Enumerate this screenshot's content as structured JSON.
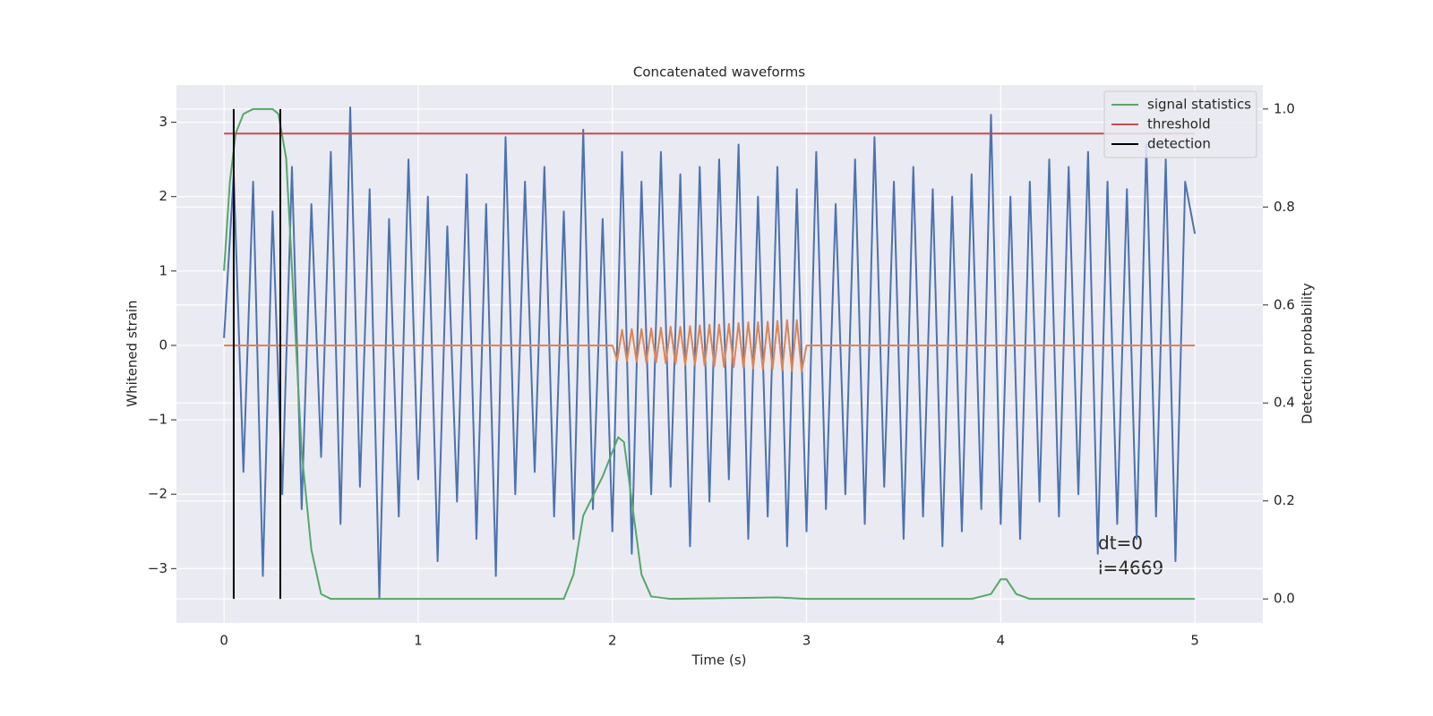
{
  "chart_data": {
    "type": "line",
    "title": "Concatenated waveforms",
    "xlabel": "Time (s)",
    "ylabel": "Whitened strain",
    "y2label": "Detection probability",
    "annotation": [
      "dt=0",
      "i=4669"
    ],
    "xlim": [
      -0.245,
      5.35
    ],
    "ylim": [
      -3.73,
      3.5
    ],
    "y2lim": [
      -0.049,
      1.049
    ],
    "xticks": [
      0,
      1,
      2,
      3,
      4,
      5
    ],
    "yticks": [
      {
        "value": -3,
        "label": "−3"
      },
      {
        "value": -2,
        "label": "−2"
      },
      {
        "value": -1,
        "label": "−1"
      },
      0,
      1,
      2,
      3
    ],
    "y2ticks": [
      {
        "value": 0,
        "label": "0.0"
      },
      {
        "value": 0.2,
        "label": "0.2"
      },
      {
        "value": 0.4,
        "label": "0.4"
      },
      {
        "value": 0.6,
        "label": "0.6"
      },
      {
        "value": 0.8,
        "label": "0.8"
      },
      {
        "value": 1,
        "label": "1.0"
      }
    ],
    "grid": true,
    "legend": "upper right",
    "series": [
      {
        "color": "#4c72b0",
        "x": [
          0,
          0.05,
          0.1,
          0.15,
          0.2,
          0.25,
          0.3,
          0.35,
          0.4,
          0.45,
          0.5,
          0.55,
          0.6,
          0.65,
          0.7,
          0.75,
          0.8,
          0.85,
          0.9,
          0.95,
          1.0,
          1.05,
          1.1,
          1.15,
          1.2,
          1.25,
          1.3,
          1.35,
          1.4,
          1.45,
          1.5,
          1.55,
          1.6,
          1.65,
          1.7,
          1.75,
          1.8,
          1.85,
          1.9,
          1.95,
          2.0,
          2.05,
          2.1,
          2.15,
          2.2,
          2.25,
          2.3,
          2.35,
          2.4,
          2.45,
          2.5,
          2.55,
          2.6,
          2.65,
          2.7,
          2.75,
          2.8,
          2.85,
          2.9,
          2.95,
          3.0,
          3.05,
          3.1,
          3.15,
          3.2,
          3.25,
          3.3,
          3.35,
          3.4,
          3.45,
          3.5,
          3.55,
          3.6,
          3.65,
          3.7,
          3.75,
          3.8,
          3.85,
          3.9,
          3.95,
          4.0,
          4.05,
          4.1,
          4.15,
          4.2,
          4.25,
          4.3,
          4.35,
          4.4,
          4.45,
          4.5,
          4.55,
          4.6,
          4.65,
          4.7,
          4.75,
          4.8,
          4.85,
          4.9,
          4.95,
          5.0
        ],
        "values": [
          0.1,
          2.3,
          -1.7,
          2.2,
          -3.1,
          1.8,
          -2.0,
          2.4,
          -2.2,
          1.9,
          -1.5,
          2.6,
          -2.4,
          3.2,
          -1.9,
          2.1,
          -3.4,
          1.7,
          -2.3,
          2.5,
          -1.8,
          2.0,
          -2.9,
          1.6,
          -2.1,
          2.3,
          -2.6,
          1.9,
          -3.1,
          2.8,
          -2.0,
          2.2,
          -1.7,
          2.4,
          -2.3,
          1.8,
          -2.6,
          2.9,
          -2.2,
          1.7,
          -2.5,
          2.6,
          -2.8,
          2.2,
          -2.0,
          2.6,
          -1.9,
          2.3,
          -2.7,
          2.4,
          -2.1,
          2.5,
          -1.8,
          2.7,
          -2.6,
          2.0,
          -2.3,
          2.4,
          -2.7,
          2.1,
          -2.5,
          2.6,
          -2.2,
          1.9,
          -2.0,
          2.5,
          -2.4,
          2.8,
          -1.9,
          2.2,
          -2.6,
          2.4,
          -2.3,
          2.1,
          -2.7,
          2.0,
          -2.5,
          2.3,
          -2.2,
          3.1,
          -2.4,
          2.0,
          -2.6,
          2.2,
          -2.1,
          2.5,
          -2.3,
          2.4,
          -2.0,
          2.6,
          -2.8,
          2.2,
          -2.4,
          2.1,
          -2.6,
          2.7,
          -2.3,
          2.5,
          -2.9,
          2.2,
          1.5
        ]
      },
      {
        "color": "#dd8452",
        "x": [
          0,
          2.0,
          2.025,
          2.05,
          2.075,
          2.1,
          2.125,
          2.15,
          2.175,
          2.2,
          2.225,
          2.25,
          2.275,
          2.3,
          2.325,
          2.35,
          2.375,
          2.4,
          2.425,
          2.45,
          2.475,
          2.5,
          2.525,
          2.55,
          2.575,
          2.6,
          2.625,
          2.65,
          2.675,
          2.7,
          2.725,
          2.75,
          2.775,
          2.8,
          2.825,
          2.85,
          2.875,
          2.9,
          2.925,
          2.95,
          2.975,
          3.0,
          5
        ],
        "values": [
          0,
          0,
          -0.2,
          0.21,
          -0.21,
          0.22,
          -0.22,
          0.22,
          -0.23,
          0.23,
          -0.23,
          0.24,
          -0.24,
          0.25,
          -0.25,
          0.25,
          -0.26,
          0.26,
          -0.26,
          0.27,
          -0.27,
          0.28,
          -0.28,
          0.28,
          -0.29,
          0.29,
          -0.29,
          0.3,
          -0.3,
          0.31,
          -0.31,
          0.31,
          -0.32,
          0.32,
          -0.32,
          0.33,
          -0.33,
          0.34,
          -0.34,
          0.34,
          -0.35,
          0,
          0
        ]
      },
      {
        "name": "signal statistics",
        "color": "#55a868",
        "axis": "y2",
        "x": [
          0,
          0.03,
          0.06,
          0.1,
          0.15,
          0.25,
          0.28,
          0.32,
          0.36,
          0.4,
          0.45,
          0.5,
          0.55,
          1.75,
          1.8,
          1.85,
          1.9,
          1.95,
          2.0,
          2.03,
          2.06,
          2.1,
          2.15,
          2.2,
          2.3,
          2.85,
          3.0,
          3.85,
          3.95,
          4.0,
          4.03,
          4.08,
          4.15,
          5
        ],
        "values": [
          0.67,
          0.85,
          0.95,
          0.99,
          1.0,
          1.0,
          0.99,
          0.9,
          0.6,
          0.3,
          0.1,
          0.01,
          0,
          0,
          0.05,
          0.17,
          0.21,
          0.25,
          0.3,
          0.33,
          0.32,
          0.2,
          0.05,
          0.005,
          0,
          0.003,
          0,
          0,
          0.01,
          0.04,
          0.04,
          0.01,
          0,
          0
        ]
      },
      {
        "name": "threshold",
        "color": "#c44e52",
        "axis": "y2",
        "x": [
          0,
          5
        ],
        "values": [
          0.95,
          0.95
        ]
      },
      {
        "name": "detection",
        "color": "#000000",
        "axis": "y2",
        "mark": "vlines",
        "x": [
          0.05,
          0.29
        ],
        "values": [
          1,
          1
        ]
      }
    ]
  }
}
